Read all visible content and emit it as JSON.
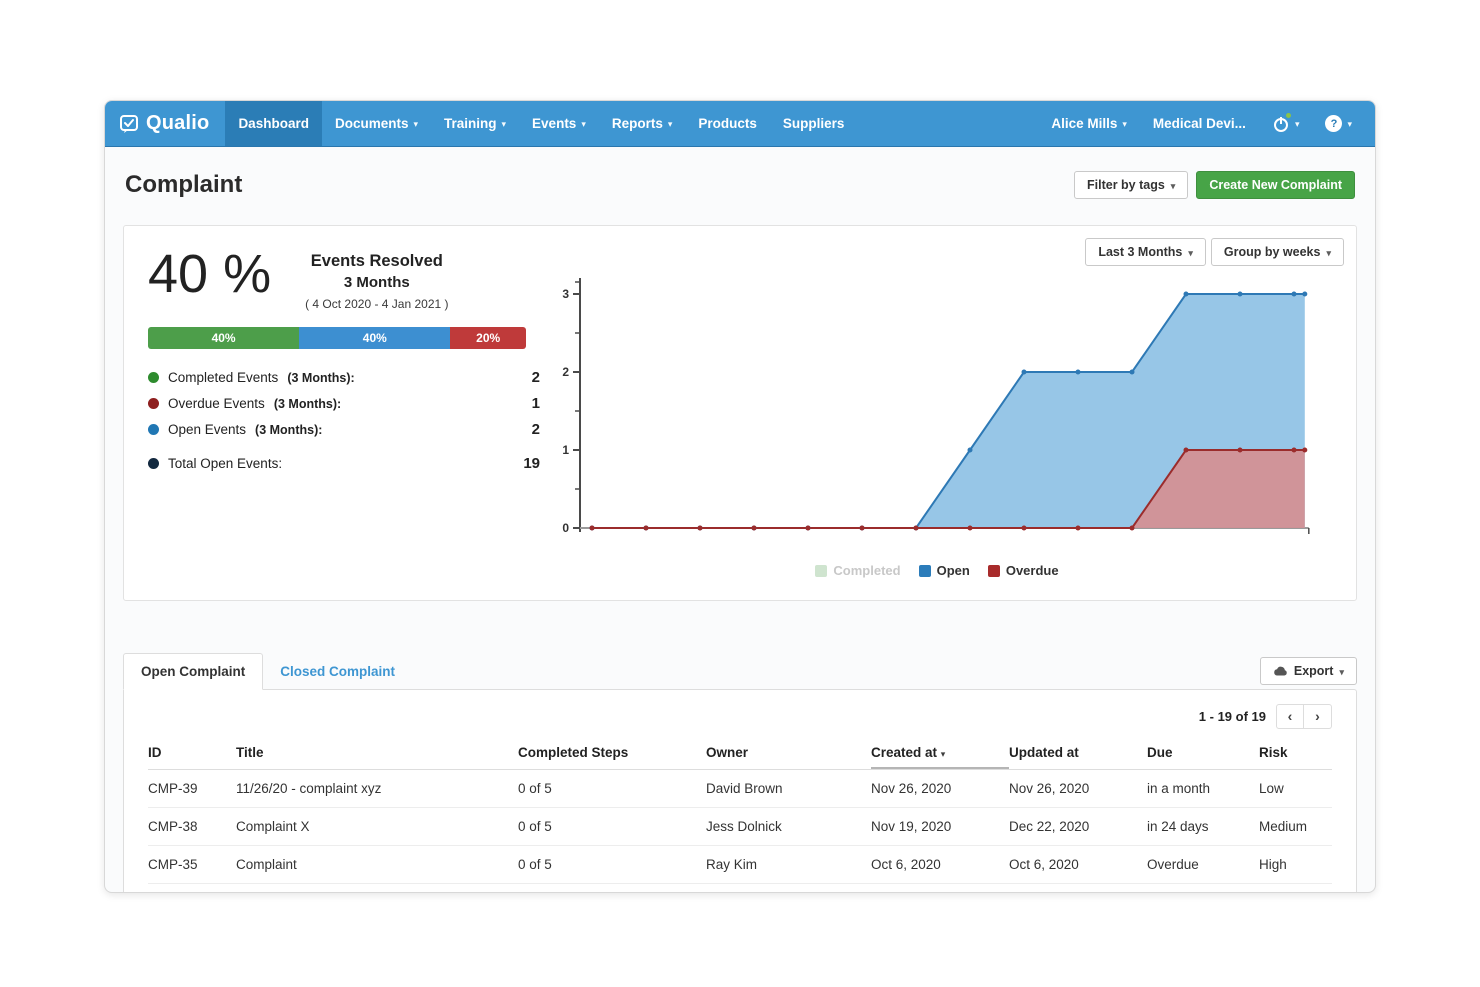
{
  "icons": {
    "caret_down": "▾",
    "prev": "‹",
    "next": "›",
    "help": "?"
  },
  "nav": {
    "brand": "Qualio",
    "items": [
      {
        "label": "Dashboard"
      },
      {
        "label": "Documents"
      },
      {
        "label": "Training"
      },
      {
        "label": "Events"
      },
      {
        "label": "Reports"
      },
      {
        "label": "Products"
      },
      {
        "label": "Suppliers"
      }
    ],
    "user": "Alice Mills",
    "org": "Medical Devi..."
  },
  "header": {
    "title": "Complaint",
    "filter_button": "Filter by tags",
    "create_button": "Create New Complaint"
  },
  "summary": {
    "percent": "40 %",
    "metric_label": "Events Resolved",
    "metric_period": "3 Months",
    "metric_range": "( 4 Oct 2020 - 4 Jan 2021 )",
    "bar_segments": [
      {
        "label": "40%",
        "color": "#4d9e4a",
        "percent": 40
      },
      {
        "label": "40%",
        "color": "#3d8fd1",
        "percent": 40
      },
      {
        "label": "20%",
        "color": "#bf3a3a",
        "percent": 20
      }
    ],
    "stats": [
      {
        "dot_color": "#2e8b2e",
        "label": "Completed Events",
        "suffix": "(3 Months):",
        "value": "2"
      },
      {
        "dot_color": "#8e1f1f",
        "label": "Overdue Events",
        "suffix": "(3 Months):",
        "value": "1"
      },
      {
        "dot_color": "#2077b4",
        "label": "Open Events",
        "suffix": "(3 Months):",
        "value": "2"
      },
      {
        "dot_color": "#13293f",
        "label": "Total Open Events:",
        "suffix": "",
        "value": "19"
      }
    ]
  },
  "chart_controls": {
    "range": "Last 3 Months",
    "grouping": "Group by weeks"
  },
  "chart_data": {
    "type": "area",
    "x_unit": "weeks",
    "x": [
      0,
      1,
      2,
      3,
      4,
      5,
      6,
      7,
      8,
      9,
      10,
      11,
      12,
      13,
      13.2
    ],
    "x_tick_labels": [],
    "ylim": [
      0,
      3
    ],
    "yticks": [
      0,
      1,
      2,
      3
    ],
    "grid": false,
    "legend_position": "bottom",
    "series": [
      {
        "name": "Completed",
        "hidden": true,
        "legend_color": "#cfe4cf",
        "line_color": "#58a058",
        "fill_color": "#cfe4cf",
        "values": null
      },
      {
        "name": "Open",
        "hidden": false,
        "legend_color": "#2b7cba",
        "line_color": "#2e79b5",
        "fill_color": "#85bce3",
        "values": [
          0,
          0,
          0,
          0,
          0,
          0,
          0,
          1,
          2,
          2,
          2,
          3,
          3,
          3,
          3
        ]
      },
      {
        "name": "Overdue",
        "hidden": false,
        "legend_color": "#a82b2b",
        "line_color": "#9b2c2c",
        "fill_color": "#d98b8b",
        "values": [
          0,
          0,
          0,
          0,
          0,
          0,
          0,
          0,
          0,
          0,
          0,
          1,
          1,
          1,
          1
        ]
      }
    ]
  },
  "tabs": {
    "open": "Open Complaint",
    "closed": "Closed Complaint"
  },
  "export_button": "Export",
  "pagination": {
    "range_text": "1 - 19 of 19"
  },
  "table": {
    "headers": [
      "ID",
      "Title",
      "Completed Steps",
      "Owner",
      "Created at",
      "Updated at",
      "Due",
      "Risk"
    ],
    "sorted_by": "Created at",
    "rows": [
      [
        "CMP-39",
        "11/26/20 - complaint xyz",
        "0 of 5",
        "David Brown",
        "Nov 26, 2020",
        "Nov 26, 2020",
        "in a month",
        "Low"
      ],
      [
        "CMP-38",
        "Complaint X",
        "0 of 5",
        "Jess Dolnick",
        "Nov 19, 2020",
        "Dec 22, 2020",
        "in 24 days",
        "Medium"
      ],
      [
        "CMP-35",
        "Complaint",
        "0 of 5",
        "Ray Kim",
        "Oct 6, 2020",
        "Oct 6, 2020",
        "Overdue",
        "High"
      ]
    ]
  }
}
